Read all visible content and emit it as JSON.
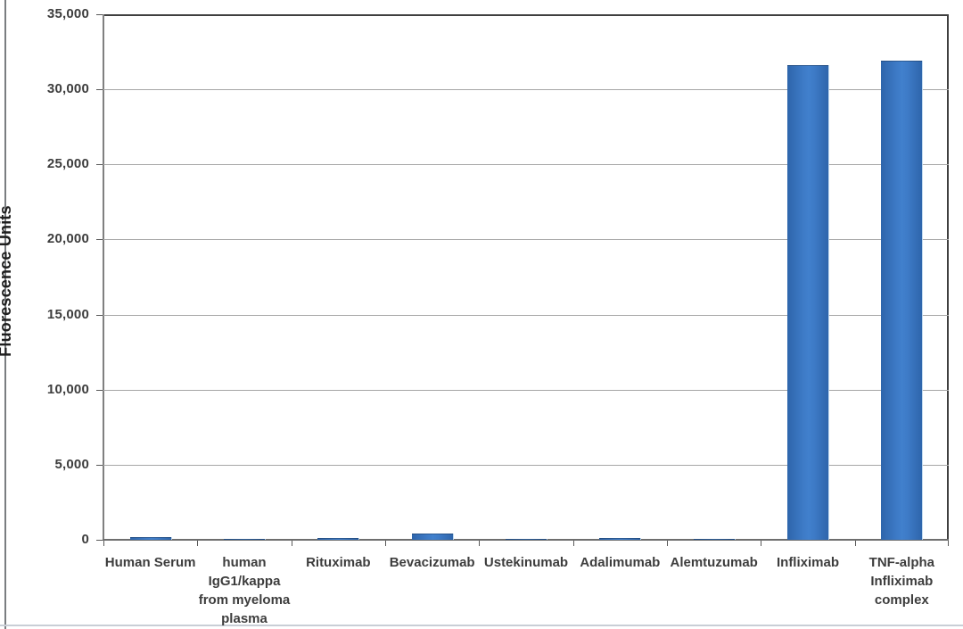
{
  "chart_data": {
    "type": "bar",
    "title": "",
    "xlabel": "",
    "ylabel": "Fluorescence Units",
    "ylim": [
      0,
      35000
    ],
    "ytick_interval": 5000,
    "ytick_labels": [
      "0",
      "5,000",
      "10,000",
      "15,000",
      "20,000",
      "25,000",
      "30,000",
      "35,000"
    ],
    "grid": true,
    "legend": false,
    "categories": [
      "Human Serum",
      "human IgG1/kappa from myeloma plasma",
      "Rituximab",
      "Bevacizumab",
      "Ustekinumab",
      "Adalimumab",
      "Alemtuzumab",
      "Infliximab",
      "TNF-alpha Infliximab complex"
    ],
    "category_label_lines": [
      [
        "Human Serum"
      ],
      [
        "human",
        "IgG1/kappa",
        "from myeloma",
        "plasma"
      ],
      [
        "Rituximab"
      ],
      [
        "Bevacizumab"
      ],
      [
        "Ustekinumab"
      ],
      [
        "Adalimumab"
      ],
      [
        "Alemtuzumab"
      ],
      [
        "Infliximab"
      ],
      [
        "TNF-alpha",
        "Infliximab",
        "complex"
      ]
    ],
    "values": [
      200,
      80,
      100,
      400,
      80,
      100,
      60,
      31600,
      31900
    ],
    "colors": {
      "bar_fill": "#3a76c2",
      "bar_fill_edge": "#2e65ab",
      "grid_line": "#a6a6a6",
      "plot_border": "#3f3f3f",
      "axis_line": "#6e6e6e",
      "tick_text": "#3d3d3d",
      "axis_title_text": "#1f1f1f"
    }
  }
}
